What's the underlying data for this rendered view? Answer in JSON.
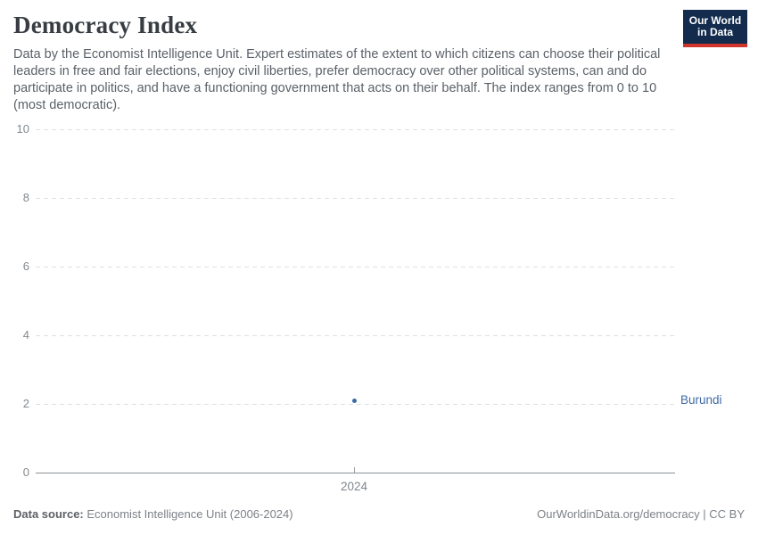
{
  "header": {
    "title": "Democracy Index",
    "logo": {
      "line1": "Our World",
      "line2": "in Data",
      "bg_color": "#132c4e",
      "accent_color": "#d0342c"
    }
  },
  "subtitle": "Data by the Economist Intelligence Unit. Expert estimates of the extent to which citizens can choose their political leaders in free and fair elections, enjoy civil liberties, prefer democracy over other political systems, can and do participate in politics, and have a functioning government that acts on their behalf. The index ranges from 0 to 10 (most democratic).",
  "chart_data": {
    "type": "scatter",
    "title": "Democracy Index",
    "entity": "Burundi",
    "series": [
      {
        "name": "Burundi",
        "color": "#3d6aa6",
        "x": [
          2024
        ],
        "y": [
          2.1
        ]
      }
    ],
    "categories": [
      "2024"
    ],
    "xticks": [
      "2024"
    ],
    "yticks": [
      0,
      2,
      4,
      6,
      8,
      10
    ],
    "ylim": [
      0,
      10
    ],
    "grid": "horizontal-dashed",
    "zero_line_solid": true,
    "legend": "entity label right of point",
    "point_color": "#3d6aa6",
    "gridline_color": "#dde1e4"
  },
  "footer": {
    "source_label": "Data source:",
    "source_value": " Economist Intelligence Unit (2006-2024)",
    "attribution": "OurWorldinData.org/democracy | CC BY"
  }
}
